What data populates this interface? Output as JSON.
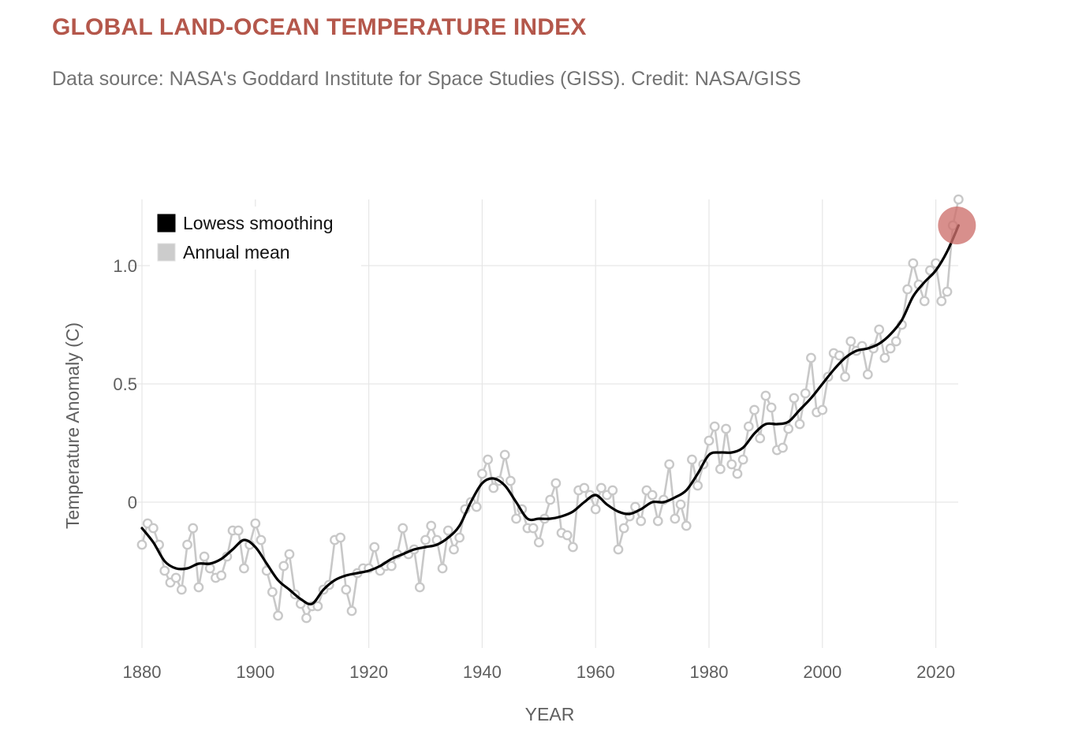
{
  "header": {
    "title": "GLOBAL LAND-OCEAN TEMPERATURE INDEX",
    "subtitle": "Data source: NASA's Goddard Institute for Space Studies (GISS). Credit: NASA/GISS"
  },
  "chart_data": {
    "type": "line",
    "xlabel": "YEAR",
    "ylabel": "Temperature Anomaly (C)",
    "xlim": [
      1880,
      2024
    ],
    "ylim": [
      -0.6,
      1.3
    ],
    "xticks": [
      1880,
      1900,
      1920,
      1940,
      1960,
      1980,
      2000,
      2020
    ],
    "yticks": [
      0,
      0.5,
      1.0
    ],
    "ytick_labels": [
      "0",
      "0.5",
      "1.0"
    ],
    "grid": true,
    "legend_position": "top-left",
    "legend": [
      {
        "label": "Lowess smoothing",
        "color": "#000000"
      },
      {
        "label": "Annual mean",
        "color": "#cccccc"
      }
    ],
    "highlight": {
      "x": 2024,
      "y": 1.17,
      "color": "#cd6f6c"
    },
    "series": [
      {
        "name": "Annual mean",
        "color": "#c8c8c8",
        "x": [
          1880,
          1881,
          1882,
          1883,
          1884,
          1885,
          1886,
          1887,
          1888,
          1889,
          1890,
          1891,
          1892,
          1893,
          1894,
          1895,
          1896,
          1897,
          1898,
          1899,
          1900,
          1901,
          1902,
          1903,
          1904,
          1905,
          1906,
          1907,
          1908,
          1909,
          1910,
          1911,
          1912,
          1913,
          1914,
          1915,
          1916,
          1917,
          1918,
          1919,
          1920,
          1921,
          1922,
          1923,
          1924,
          1925,
          1926,
          1927,
          1928,
          1929,
          1930,
          1931,
          1932,
          1933,
          1934,
          1935,
          1936,
          1937,
          1938,
          1939,
          1940,
          1941,
          1942,
          1943,
          1944,
          1945,
          1946,
          1947,
          1948,
          1949,
          1950,
          1951,
          1952,
          1953,
          1954,
          1955,
          1956,
          1957,
          1958,
          1959,
          1960,
          1961,
          1962,
          1963,
          1964,
          1965,
          1966,
          1967,
          1968,
          1969,
          1970,
          1971,
          1972,
          1973,
          1974,
          1975,
          1976,
          1977,
          1978,
          1979,
          1980,
          1981,
          1982,
          1983,
          1984,
          1985,
          1986,
          1987,
          1988,
          1989,
          1990,
          1991,
          1992,
          1993,
          1994,
          1995,
          1996,
          1997,
          1998,
          1999,
          2000,
          2001,
          2002,
          2003,
          2004,
          2005,
          2006,
          2007,
          2008,
          2009,
          2010,
          2011,
          2012,
          2013,
          2014,
          2015,
          2016,
          2017,
          2018,
          2019,
          2020,
          2021,
          2022,
          2023,
          2024
        ],
        "values": [
          -0.18,
          -0.09,
          -0.11,
          -0.18,
          -0.29,
          -0.34,
          -0.32,
          -0.37,
          -0.18,
          -0.11,
          -0.36,
          -0.23,
          -0.28,
          -0.32,
          -0.31,
          -0.23,
          -0.12,
          -0.12,
          -0.28,
          -0.18,
          -0.09,
          -0.16,
          -0.29,
          -0.38,
          -0.48,
          -0.27,
          -0.22,
          -0.39,
          -0.43,
          -0.49,
          -0.44,
          -0.44,
          -0.37,
          -0.35,
          -0.16,
          -0.15,
          -0.37,
          -0.46,
          -0.3,
          -0.28,
          -0.28,
          -0.19,
          -0.29,
          -0.27,
          -0.27,
          -0.22,
          -0.11,
          -0.22,
          -0.2,
          -0.36,
          -0.16,
          -0.1,
          -0.16,
          -0.28,
          -0.12,
          -0.2,
          -0.15,
          -0.03,
          0.0,
          -0.02,
          0.12,
          0.18,
          0.06,
          0.09,
          0.2,
          0.09,
          -0.07,
          -0.03,
          -0.11,
          -0.11,
          -0.17,
          -0.07,
          0.01,
          0.08,
          -0.13,
          -0.14,
          -0.19,
          0.05,
          0.06,
          0.03,
          -0.03,
          0.06,
          0.03,
          0.05,
          -0.2,
          -0.11,
          -0.06,
          -0.02,
          -0.08,
          0.05,
          0.03,
          -0.08,
          0.01,
          0.16,
          -0.07,
          -0.01,
          -0.1,
          0.18,
          0.07,
          0.16,
          0.26,
          0.32,
          0.14,
          0.31,
          0.16,
          0.12,
          0.18,
          0.32,
          0.39,
          0.27,
          0.45,
          0.4,
          0.22,
          0.23,
          0.31,
          0.44,
          0.33,
          0.46,
          0.61,
          0.38,
          0.39,
          0.53,
          0.63,
          0.62,
          0.53,
          0.68,
          0.64,
          0.66,
          0.54,
          0.65,
          0.73,
          0.61,
          0.65,
          0.68,
          0.75,
          0.9,
          1.01,
          0.92,
          0.85,
          0.98,
          1.01,
          0.85,
          0.89,
          1.17,
          1.28
        ]
      },
      {
        "name": "Lowess smoothing",
        "color": "#000000",
        "x": [
          1880,
          1882,
          1884,
          1886,
          1888,
          1890,
          1892,
          1894,
          1896,
          1898,
          1900,
          1902,
          1904,
          1906,
          1908,
          1910,
          1912,
          1914,
          1916,
          1918,
          1920,
          1922,
          1924,
          1926,
          1928,
          1930,
          1932,
          1934,
          1936,
          1938,
          1940,
          1942,
          1944,
          1946,
          1948,
          1950,
          1952,
          1954,
          1956,
          1958,
          1960,
          1962,
          1964,
          1966,
          1968,
          1970,
          1972,
          1974,
          1976,
          1978,
          1980,
          1982,
          1984,
          1986,
          1988,
          1990,
          1992,
          1994,
          1996,
          1998,
          2000,
          2002,
          2004,
          2006,
          2008,
          2010,
          2012,
          2014,
          2016,
          2018,
          2020,
          2022,
          2024
        ],
        "values": [
          -0.11,
          -0.17,
          -0.25,
          -0.28,
          -0.28,
          -0.26,
          -0.26,
          -0.24,
          -0.2,
          -0.16,
          -0.19,
          -0.26,
          -0.33,
          -0.37,
          -0.41,
          -0.43,
          -0.37,
          -0.33,
          -0.31,
          -0.3,
          -0.29,
          -0.27,
          -0.24,
          -0.22,
          -0.2,
          -0.19,
          -0.18,
          -0.15,
          -0.1,
          0.0,
          0.08,
          0.1,
          0.07,
          0.0,
          -0.07,
          -0.07,
          -0.07,
          -0.06,
          -0.04,
          0.0,
          0.03,
          -0.01,
          -0.04,
          -0.05,
          -0.03,
          0.0,
          0.0,
          0.02,
          0.05,
          0.12,
          0.2,
          0.21,
          0.21,
          0.23,
          0.29,
          0.33,
          0.33,
          0.34,
          0.39,
          0.44,
          0.5,
          0.56,
          0.61,
          0.64,
          0.65,
          0.67,
          0.71,
          0.77,
          0.87,
          0.93,
          0.98,
          1.06,
          1.17
        ]
      }
    ]
  }
}
